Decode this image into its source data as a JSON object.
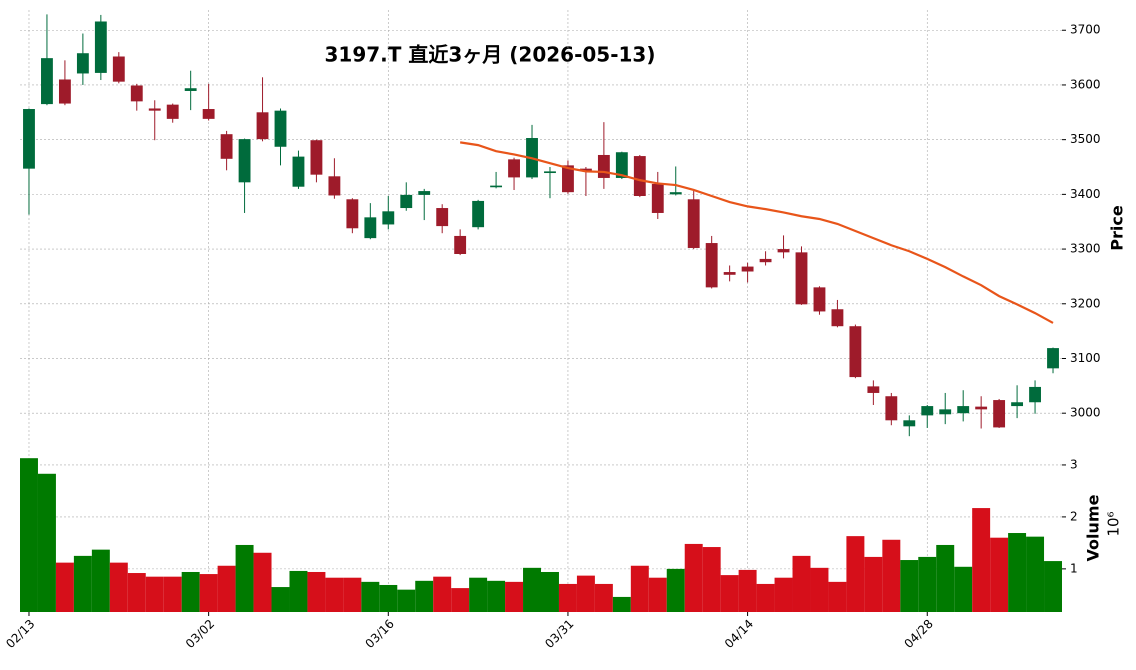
{
  "chart_data": {
    "type": "candlestick",
    "title": "3197.T 直近3ヶ月 (2026-05-13)",
    "categories": [
      "02/13",
      null,
      null,
      null,
      null,
      null,
      null,
      null,
      null,
      null,
      "03/02",
      null,
      null,
      null,
      null,
      null,
      null,
      null,
      null,
      null,
      "03/16",
      null,
      null,
      null,
      null,
      null,
      null,
      null,
      null,
      null,
      "03/31",
      null,
      null,
      null,
      null,
      null,
      null,
      null,
      null,
      null,
      "04/14",
      null,
      null,
      null,
      null,
      null,
      null,
      null,
      null,
      null,
      "04/28",
      null,
      null,
      null,
      null,
      null,
      null,
      null
    ],
    "open": [
      3447,
      3565,
      3610,
      3621,
      3622,
      3652,
      3599,
      3557,
      3564,
      3589,
      3556,
      3510,
      3422,
      3550,
      3487,
      3414,
      3499,
      3433,
      3391,
      3320,
      3345,
      3375,
      3399,
      3375,
      3324,
      3340,
      3413,
      3464,
      3431,
      3439,
      3453,
      3447,
      3472,
      3430,
      3470,
      3419,
      3400,
      3391,
      3311,
      3258,
      3268,
      3282,
      3300,
      3294,
      3230,
      3190,
      3159,
      3049,
      3031,
      2976,
      2996,
      2998,
      3000,
      3012,
      3024,
      3013,
      3020,
      3082
    ],
    "high": [
      3557,
      3729,
      3645,
      3694,
      3728,
      3660,
      3602,
      3572,
      3566,
      3626,
      3602,
      3516,
      3502,
      3614,
      3557,
      3480,
      3500,
      3466,
      3393,
      3384,
      3397,
      3422,
      3410,
      3382,
      3336,
      3390,
      3441,
      3467,
      3527,
      3450,
      3462,
      3450,
      3532,
      3478,
      3472,
      3441,
      3451,
      3408,
      3324,
      3270,
      3275,
      3296,
      3325,
      3305,
      3232,
      3207,
      3162,
      3060,
      3037,
      2996,
      3015,
      3037,
      3042,
      3031,
      3026,
      3051,
      3060,
      3120
    ],
    "low": [
      3363,
      3563,
      3563,
      3600,
      3609,
      3603,
      3553,
      3499,
      3531,
      3554,
      3535,
      3444,
      3366,
      3497,
      3453,
      3410,
      3422,
      3392,
      3329,
      3318,
      3336,
      3370,
      3353,
      3329,
      3289,
      3336,
      3411,
      3408,
      3428,
      3393,
      3401,
      3397,
      3410,
      3428,
      3395,
      3355,
      3398,
      3300,
      3228,
      3241,
      3239,
      3270,
      3283,
      3198,
      3180,
      3157,
      3064,
      3015,
      2978,
      2958,
      2973,
      2980,
      2985,
      2972,
      2973,
      2991,
      2999,
      3073
    ],
    "close": [
      3556,
      3649,
      3566,
      3658,
      3716,
      3606,
      3570,
      3553,
      3538,
      3594,
      3538,
      3465,
      3501,
      3501,
      3553,
      3469,
      3436,
      3398,
      3338,
      3358,
      3369,
      3399,
      3406,
      3342,
      3291,
      3388,
      3416,
      3431,
      3503,
      3442,
      3404,
      3442,
      3430,
      3477,
      3397,
      3366,
      3404,
      3302,
      3230,
      3253,
      3259,
      3276,
      3294,
      3199,
      3186,
      3159,
      3066,
      3037,
      2987,
      2987,
      3013,
      3007,
      3013,
      3007,
      2974,
      3020,
      3048,
      3119
    ],
    "up_color": "#006b3c",
    "down_color": "#9e1b2a",
    "moving_average": {
      "color": "#e8551a",
      "values": [
        null,
        null,
        null,
        null,
        null,
        null,
        null,
        null,
        null,
        null,
        null,
        null,
        null,
        null,
        null,
        null,
        null,
        null,
        null,
        null,
        null,
        null,
        null,
        null,
        3495,
        3490,
        3479,
        3473,
        3466,
        3457,
        3448,
        3442,
        3441,
        3435,
        3426,
        3420,
        3417,
        3408,
        3397,
        3386,
        3378,
        3373,
        3367,
        3360,
        3355,
        3346,
        3333,
        3320,
        3307,
        3296,
        3282,
        3267,
        3250,
        3234,
        3214,
        3199,
        3183,
        3165
      ]
    },
    "ylabel": "Price",
    "ylim": [
      2951,
      3737
    ],
    "yticks": [
      3000,
      3100,
      3200,
      3300,
      3400,
      3500,
      3600,
      3700
    ],
    "grid": true,
    "volume": {
      "ylabel": "Volume",
      "offset_label": "10⁶",
      "up_color": "#007a00",
      "down_color": "#d60f1a",
      "values": [
        3.13,
        2.83,
        1.12,
        1.25,
        1.37,
        1.12,
        0.92,
        0.85,
        0.85,
        0.94,
        0.9,
        1.06,
        1.46,
        1.31,
        0.65,
        0.96,
        0.94,
        0.83,
        0.83,
        0.75,
        0.69,
        0.6,
        0.77,
        0.85,
        0.63,
        0.83,
        0.77,
        0.75,
        1.02,
        0.94,
        0.71,
        0.87,
        0.71,
        0.46,
        1.06,
        0.83,
        1.0,
        1.48,
        1.42,
        0.88,
        0.98,
        0.71,
        0.83,
        1.25,
        1.02,
        0.75,
        1.63,
        1.23,
        1.56,
        1.17,
        1.23,
        1.46,
        1.04,
        2.17,
        1.6,
        1.69,
        1.62,
        1.15
      ],
      "ylim": [
        0.17,
        3.48
      ],
      "yticks": [
        1,
        2,
        3
      ]
    }
  }
}
